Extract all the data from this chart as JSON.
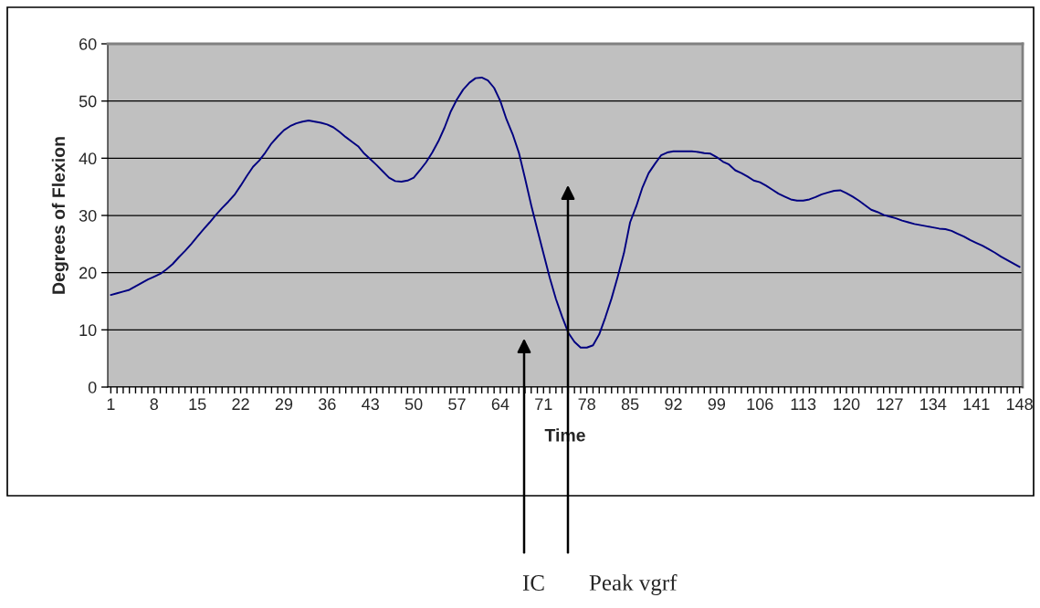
{
  "chart_data": {
    "type": "line",
    "xlabel": "Time",
    "ylabel": "Degrees of Flexion",
    "categories": [
      "1",
      null,
      null,
      null,
      null,
      null,
      null,
      "8",
      null,
      null,
      null,
      null,
      null,
      null,
      "15",
      null,
      null,
      null,
      null,
      null,
      null,
      "22",
      null,
      null,
      null,
      null,
      null,
      null,
      "29",
      null,
      null,
      null,
      null,
      null,
      null,
      "36",
      null,
      null,
      null,
      null,
      null,
      null,
      "43",
      null,
      null,
      null,
      null,
      null,
      null,
      "50",
      null,
      null,
      null,
      null,
      null,
      null,
      "57",
      null,
      null,
      null,
      null,
      null,
      null,
      "64",
      null,
      null,
      null,
      null,
      null,
      null,
      "71",
      null,
      null,
      null,
      null,
      null,
      null,
      "78",
      null,
      null,
      null,
      null,
      null,
      null,
      "85",
      null,
      null,
      null,
      null,
      null,
      null,
      "92",
      null,
      null,
      null,
      null,
      null,
      null,
      "99",
      null,
      null,
      null,
      null,
      null,
      null,
      "106",
      null,
      null,
      null,
      null,
      null,
      null,
      "113",
      null,
      null,
      null,
      null,
      null,
      null,
      "120",
      null,
      null,
      null,
      null,
      null,
      null,
      "127",
      null,
      null,
      null,
      null,
      null,
      null,
      "134",
      null,
      null,
      null,
      null,
      null,
      null,
      "141",
      null,
      null,
      null,
      null,
      null,
      null,
      "148"
    ],
    "series": [
      {
        "color": "#000080",
        "values": [
          16.1,
          16.4,
          16.7,
          17.0,
          17.6,
          18.2,
          18.8,
          19.3,
          19.8,
          20.6,
          21.5,
          22.7,
          23.8,
          25.0,
          26.3,
          27.6,
          28.8,
          30.1,
          31.3,
          32.4,
          33.6,
          35.2,
          36.9,
          38.5,
          39.6,
          41.0,
          42.6,
          43.8,
          44.9,
          45.6,
          46.1,
          46.4,
          46.6,
          46.4,
          46.2,
          45.9,
          45.4,
          44.6,
          43.7,
          42.9,
          42.1,
          40.8,
          39.8,
          38.8,
          37.7,
          36.6,
          36.0,
          35.9,
          36.1,
          36.6,
          37.9,
          39.3,
          41.0,
          43.0,
          45.4,
          48.2,
          50.3,
          52.0,
          53.2,
          54.0,
          54.1,
          53.6,
          52.3,
          50.0,
          46.8,
          44.2,
          41.0,
          36.5,
          31.8,
          27.5,
          23.3,
          19.1,
          15.4,
          12.3,
          9.5,
          7.9,
          6.9,
          6.9,
          7.3,
          9.2,
          12.2,
          15.5,
          19.3,
          23.4,
          28.8,
          31.6,
          34.9,
          37.4,
          39.0,
          40.5,
          41.0,
          41.2,
          41.2,
          41.2,
          41.2,
          41.1,
          40.9,
          40.8,
          40.2,
          39.4,
          38.9,
          37.9,
          37.4,
          36.8,
          36.1,
          35.8,
          35.2,
          34.5,
          33.8,
          33.3,
          32.8,
          32.6,
          32.6,
          32.8,
          33.2,
          33.7,
          34.0,
          34.3,
          34.4,
          33.9,
          33.3,
          32.6,
          31.8,
          31.0,
          30.6,
          30.1,
          29.8,
          29.5,
          29.1,
          28.8,
          28.5,
          28.3,
          28.1,
          27.9,
          27.7,
          27.6,
          27.3,
          26.8,
          26.3,
          25.7,
          25.2,
          24.7,
          24.1,
          23.5,
          22.8,
          22.2,
          21.6,
          21.0
        ]
      }
    ],
    "ylim": [
      0,
      60
    ],
    "yticks": [
      0,
      10,
      20,
      30,
      40,
      50,
      60
    ],
    "grid": "y",
    "marker": "none",
    "line_style": "solid",
    "annotations": [
      "IC",
      "Peak vgrf"
    ]
  }
}
